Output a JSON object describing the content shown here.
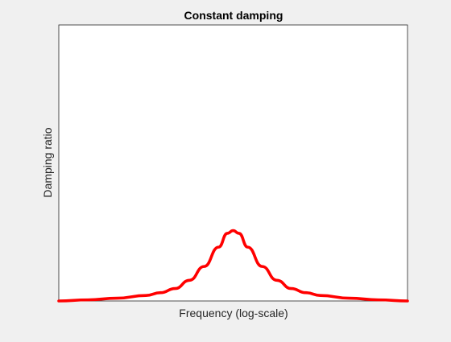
{
  "chart_data": {
    "type": "line",
    "title": "Constant damping",
    "xlabel": "Frequency (log-scale)",
    "ylabel": "Damping ratio",
    "xscale": "log",
    "x_ticks_shown": false,
    "y_ticks_shown": false,
    "grid": false,
    "legend": "none",
    "series": [
      {
        "color": "#ff0000",
        "points": [
          {
            "x": -3.0,
            "y": 0.0
          },
          {
            "x": -2.5,
            "y": 0.004
          },
          {
            "x": -2.0,
            "y": 0.01
          },
          {
            "x": -1.5,
            "y": 0.02
          },
          {
            "x": -1.25,
            "y": 0.03
          },
          {
            "x": -1.0,
            "y": 0.045
          },
          {
            "x": -0.75,
            "y": 0.075
          },
          {
            "x": -0.5,
            "y": 0.125
          },
          {
            "x": -0.25,
            "y": 0.195
          },
          {
            "x": -0.1,
            "y": 0.245
          },
          {
            "x": 0.0,
            "y": 0.255
          },
          {
            "x": 0.1,
            "y": 0.245
          },
          {
            "x": 0.25,
            "y": 0.195
          },
          {
            "x": 0.5,
            "y": 0.125
          },
          {
            "x": 0.75,
            "y": 0.075
          },
          {
            "x": 1.0,
            "y": 0.045
          },
          {
            "x": 1.25,
            "y": 0.03
          },
          {
            "x": 1.5,
            "y": 0.02
          },
          {
            "x": 2.0,
            "y": 0.01
          },
          {
            "x": 2.5,
            "y": 0.004
          },
          {
            "x": 3.0,
            "y": 0.0
          }
        ]
      }
    ],
    "xlim": [
      -3,
      3
    ],
    "ylim": [
      0,
      1
    ]
  }
}
